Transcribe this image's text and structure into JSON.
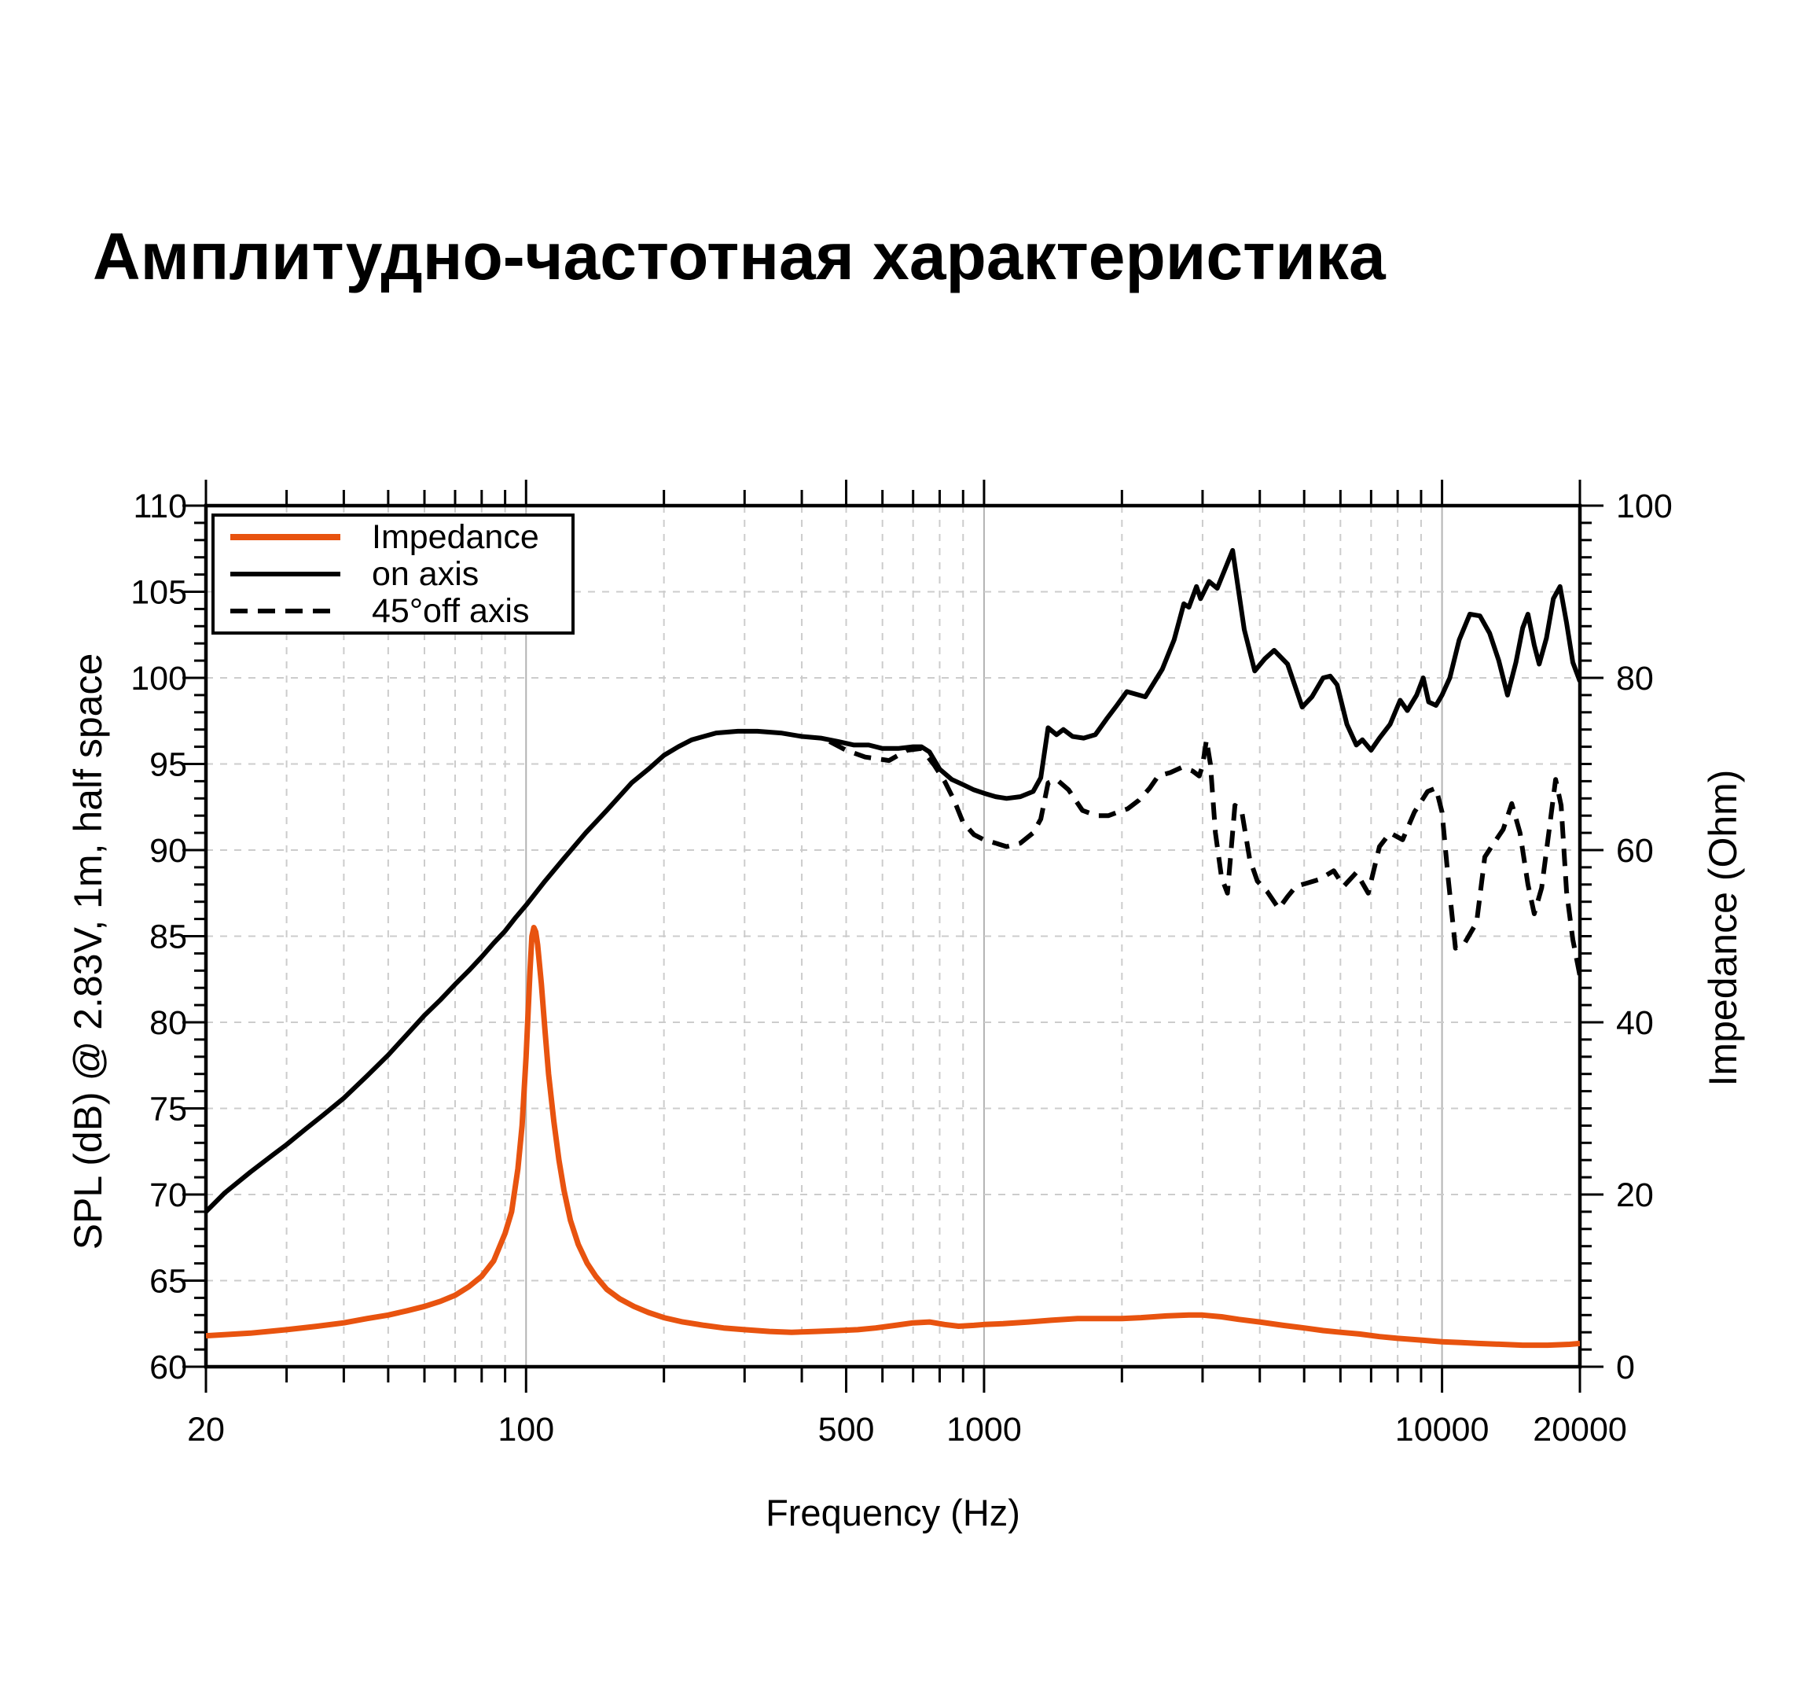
{
  "title": "Амплитудно-частотная характеристика",
  "legend": {
    "items": [
      {
        "label": "Impedance",
        "swatch": "impedance-line"
      },
      {
        "label": "on axis",
        "swatch": "solid-line"
      },
      {
        "label": "45°off axis",
        "swatch": "dashed-line"
      }
    ]
  },
  "colors": {
    "impedance": "#e8530f",
    "spl_curves": "#000000",
    "grid_minor": "#cccccc",
    "grid_decade": "#b3b3b3",
    "axis": "#000000"
  },
  "axes": {
    "x": {
      "label": "Frequency (Hz)",
      "scale": "log",
      "min": 20,
      "max": 20000,
      "tick_labels": [
        "20",
        "100",
        "500",
        "1000",
        "10000",
        "20000"
      ],
      "labeled_ticks": [
        20,
        100,
        500,
        1000,
        10000,
        20000
      ],
      "minor_ticks": [
        30,
        40,
        50,
        60,
        70,
        80,
        90,
        200,
        300,
        400,
        600,
        700,
        800,
        900,
        2000,
        3000,
        4000,
        5000,
        6000,
        7000,
        8000,
        9000
      ],
      "decade_gridlines": [
        100,
        1000,
        10000
      ]
    },
    "y_left": {
      "label": "SPL (dB) @ 2.83V, 1m, half space",
      "min": 60,
      "max": 110,
      "major_step": 5,
      "minor_step": 1,
      "tick_labels": [
        "110",
        "105",
        "100",
        "95",
        "90",
        "85",
        "80",
        "75",
        "70",
        "65",
        "60"
      ]
    },
    "y_right": {
      "label": "Impedance (Ohm)",
      "min": 0,
      "max": 100,
      "major_step": 20,
      "minor_step": 2,
      "tick_labels": [
        "100",
        "80",
        "60",
        "40",
        "20",
        "0"
      ]
    }
  },
  "chart_data": {
    "type": "line",
    "title": "Амплитудно-частотная характеристика",
    "xlabel": "Frequency (Hz)",
    "ylabel_left": "SPL (dB) @ 2.83V, 1m, half space",
    "ylabel_right": "Impedance (Ohm)",
    "x_range": [
      20,
      20000
    ],
    "y_left_range": [
      60,
      110
    ],
    "y_right_range": [
      0,
      100
    ],
    "grid": true,
    "legend_position": "top-left",
    "series": [
      {
        "name": "on axis",
        "axis": "left",
        "style": "solid",
        "color": "#000000",
        "points": [
          [
            20,
            69.0
          ],
          [
            22,
            70.1
          ],
          [
            25,
            71.3
          ],
          [
            28,
            72.3
          ],
          [
            30,
            72.9
          ],
          [
            33,
            73.8
          ],
          [
            36,
            74.6
          ],
          [
            40,
            75.6
          ],
          [
            45,
            76.9
          ],
          [
            50,
            78.1
          ],
          [
            55,
            79.3
          ],
          [
            60,
            80.4
          ],
          [
            65,
            81.3
          ],
          [
            70,
            82.2
          ],
          [
            75,
            83.0
          ],
          [
            80,
            83.8
          ],
          [
            85,
            84.6
          ],
          [
            90,
            85.3
          ],
          [
            95,
            86.1
          ],
          [
            100,
            86.8
          ],
          [
            110,
            88.2
          ],
          [
            120,
            89.4
          ],
          [
            135,
            91.0
          ],
          [
            150,
            92.3
          ],
          [
            170,
            93.9
          ],
          [
            185,
            94.7
          ],
          [
            200,
            95.5
          ],
          [
            215,
            96.0
          ],
          [
            230,
            96.4
          ],
          [
            260,
            96.8
          ],
          [
            290,
            96.9
          ],
          [
            320,
            96.9
          ],
          [
            360,
            96.8
          ],
          [
            400,
            96.6
          ],
          [
            440,
            96.5
          ],
          [
            480,
            96.3
          ],
          [
            520,
            96.1
          ],
          [
            560,
            96.1
          ],
          [
            600,
            95.9
          ],
          [
            650,
            95.9
          ],
          [
            700,
            96.0
          ],
          [
            730,
            96.0
          ],
          [
            760,
            95.7
          ],
          [
            800,
            94.7
          ],
          [
            850,
            94.1
          ],
          [
            900,
            93.8
          ],
          [
            950,
            93.5
          ],
          [
            1000,
            93.3
          ],
          [
            1060,
            93.1
          ],
          [
            1120,
            93.0
          ],
          [
            1200,
            93.1
          ],
          [
            1280,
            93.4
          ],
          [
            1330,
            94.2
          ],
          [
            1380,
            97.1
          ],
          [
            1440,
            96.7
          ],
          [
            1490,
            97.0
          ],
          [
            1560,
            96.6
          ],
          [
            1650,
            96.5
          ],
          [
            1750,
            96.7
          ],
          [
            1850,
            97.6
          ],
          [
            1950,
            98.4
          ],
          [
            2050,
            99.2
          ],
          [
            2250,
            98.9
          ],
          [
            2450,
            100.5
          ],
          [
            2600,
            102.2
          ],
          [
            2730,
            104.3
          ],
          [
            2800,
            104.1
          ],
          [
            2910,
            105.3
          ],
          [
            2970,
            104.6
          ],
          [
            3100,
            105.6
          ],
          [
            3230,
            105.2
          ],
          [
            3490,
            107.4
          ],
          [
            3700,
            102.8
          ],
          [
            3900,
            100.4
          ],
          [
            4100,
            101.1
          ],
          [
            4300,
            101.6
          ],
          [
            4600,
            100.8
          ],
          [
            4950,
            98.3
          ],
          [
            5200,
            98.9
          ],
          [
            5500,
            100.0
          ],
          [
            5700,
            100.1
          ],
          [
            5900,
            99.6
          ],
          [
            6200,
            97.3
          ],
          [
            6500,
            96.1
          ],
          [
            6700,
            96.4
          ],
          [
            7000,
            95.8
          ],
          [
            7300,
            96.5
          ],
          [
            7700,
            97.3
          ],
          [
            8100,
            98.7
          ],
          [
            8400,
            98.1
          ],
          [
            8800,
            99.0
          ],
          [
            9100,
            100.0
          ],
          [
            9350,
            98.6
          ],
          [
            9700,
            98.4
          ],
          [
            10000,
            99.0
          ],
          [
            10400,
            100.0
          ],
          [
            10900,
            102.2
          ],
          [
            11500,
            103.7
          ],
          [
            12100,
            103.6
          ],
          [
            12700,
            102.6
          ],
          [
            13300,
            101.0
          ],
          [
            13900,
            99.0
          ],
          [
            14500,
            100.9
          ],
          [
            15000,
            102.9
          ],
          [
            15400,
            103.7
          ],
          [
            15900,
            101.9
          ],
          [
            16300,
            100.8
          ],
          [
            16900,
            102.3
          ],
          [
            17500,
            104.6
          ],
          [
            18100,
            105.3
          ],
          [
            18700,
            103.2
          ],
          [
            19300,
            100.9
          ],
          [
            20000,
            99.8
          ]
        ]
      },
      {
        "name": "45°off axis",
        "axis": "left",
        "style": "dashed",
        "color": "#000000",
        "points": [
          [
            460,
            96.3
          ],
          [
            500,
            95.8
          ],
          [
            550,
            95.4
          ],
          [
            620,
            95.2
          ],
          [
            680,
            95.8
          ],
          [
            730,
            95.9
          ],
          [
            780,
            94.9
          ],
          [
            820,
            94.0
          ],
          [
            860,
            92.9
          ],
          [
            900,
            91.6
          ],
          [
            950,
            90.9
          ],
          [
            1000,
            90.6
          ],
          [
            1060,
            90.4
          ],
          [
            1120,
            90.2
          ],
          [
            1200,
            90.4
          ],
          [
            1280,
            91.0
          ],
          [
            1330,
            91.8
          ],
          [
            1380,
            93.9
          ],
          [
            1440,
            94.1
          ],
          [
            1530,
            93.5
          ],
          [
            1640,
            92.3
          ],
          [
            1760,
            92.0
          ],
          [
            1870,
            92.0
          ],
          [
            1960,
            92.2
          ],
          [
            2060,
            92.4
          ],
          [
            2180,
            92.9
          ],
          [
            2300,
            93.6
          ],
          [
            2400,
            94.3
          ],
          [
            2550,
            94.5
          ],
          [
            2700,
            94.8
          ],
          [
            2850,
            94.6
          ],
          [
            2950,
            94.3
          ],
          [
            3000,
            94.9
          ],
          [
            3060,
            96.4
          ],
          [
            3120,
            95.0
          ],
          [
            3200,
            91.0
          ],
          [
            3300,
            88.4
          ],
          [
            3400,
            87.5
          ],
          [
            3530,
            92.6
          ],
          [
            3650,
            92.3
          ],
          [
            3800,
            89.5
          ],
          [
            3950,
            88.2
          ],
          [
            4150,
            87.6
          ],
          [
            4400,
            86.6
          ],
          [
            4600,
            87.3
          ],
          [
            4800,
            87.9
          ],
          [
            5100,
            88.1
          ],
          [
            5400,
            88.3
          ],
          [
            5800,
            88.8
          ],
          [
            6100,
            87.9
          ],
          [
            6500,
            88.7
          ],
          [
            6900,
            87.5
          ],
          [
            7300,
            90.2
          ],
          [
            7700,
            91.0
          ],
          [
            8200,
            90.6
          ],
          [
            8700,
            92.2
          ],
          [
            9300,
            93.4
          ],
          [
            9700,
            93.6
          ],
          [
            10000,
            92.2
          ],
          [
            10300,
            88.5
          ],
          [
            10700,
            84.3
          ],
          [
            11200,
            84.6
          ],
          [
            11900,
            85.8
          ],
          [
            12400,
            89.6
          ],
          [
            12900,
            90.3
          ],
          [
            13600,
            91.2
          ],
          [
            14200,
            92.7
          ],
          [
            14800,
            91.0
          ],
          [
            15400,
            88.0
          ],
          [
            15900,
            86.3
          ],
          [
            16500,
            87.8
          ],
          [
            17100,
            91.0
          ],
          [
            17700,
            94.1
          ],
          [
            18200,
            92.6
          ],
          [
            18700,
            87.6
          ],
          [
            19300,
            84.8
          ],
          [
            20000,
            82.7
          ]
        ]
      },
      {
        "name": "Impedance",
        "axis": "right",
        "style": "solid",
        "color": "#e8530f",
        "points": [
          [
            20,
            3.6
          ],
          [
            25,
            3.9
          ],
          [
            30,
            4.3
          ],
          [
            35,
            4.7
          ],
          [
            40,
            5.1
          ],
          [
            45,
            5.6
          ],
          [
            50,
            6.0
          ],
          [
            55,
            6.5
          ],
          [
            60,
            7.0
          ],
          [
            65,
            7.6
          ],
          [
            70,
            8.3
          ],
          [
            75,
            9.3
          ],
          [
            80,
            10.5
          ],
          [
            85,
            12.3
          ],
          [
            90,
            15.5
          ],
          [
            93,
            18.0
          ],
          [
            96,
            23.0
          ],
          [
            98,
            28.0
          ],
          [
            100,
            36.0
          ],
          [
            101,
            41.0
          ],
          [
            102,
            46.0
          ],
          [
            103,
            50.0
          ],
          [
            104,
            51.0
          ],
          [
            105,
            50.5
          ],
          [
            106,
            49.0
          ],
          [
            108,
            44.5
          ],
          [
            110,
            39.0
          ],
          [
            112,
            34.0
          ],
          [
            115,
            28.5
          ],
          [
            118,
            24.0
          ],
          [
            121,
            20.5
          ],
          [
            125,
            17.0
          ],
          [
            130,
            14.2
          ],
          [
            136,
            12.0
          ],
          [
            142,
            10.5
          ],
          [
            150,
            9.0
          ],
          [
            160,
            7.9
          ],
          [
            172,
            7.0
          ],
          [
            185,
            6.3
          ],
          [
            200,
            5.7
          ],
          [
            220,
            5.2
          ],
          [
            245,
            4.8
          ],
          [
            270,
            4.5
          ],
          [
            300,
            4.3
          ],
          [
            340,
            4.1
          ],
          [
            380,
            4.0
          ],
          [
            430,
            4.1
          ],
          [
            480,
            4.2
          ],
          [
            530,
            4.3
          ],
          [
            580,
            4.5
          ],
          [
            640,
            4.8
          ],
          [
            700,
            5.1
          ],
          [
            760,
            5.2
          ],
          [
            820,
            4.9
          ],
          [
            880,
            4.7
          ],
          [
            950,
            4.8
          ],
          [
            1000,
            4.9
          ],
          [
            1100,
            5.0
          ],
          [
            1250,
            5.2
          ],
          [
            1400,
            5.4
          ],
          [
            1600,
            5.6
          ],
          [
            1800,
            5.6
          ],
          [
            2000,
            5.6
          ],
          [
            2200,
            5.7
          ],
          [
            2500,
            5.9
          ],
          [
            2800,
            6.0
          ],
          [
            3000,
            6.0
          ],
          [
            3300,
            5.8
          ],
          [
            3600,
            5.5
          ],
          [
            4000,
            5.2
          ],
          [
            4500,
            4.8
          ],
          [
            5000,
            4.5
          ],
          [
            5500,
            4.2
          ],
          [
            6000,
            4.0
          ],
          [
            6600,
            3.8
          ],
          [
            7300,
            3.5
          ],
          [
            8000,
            3.3
          ],
          [
            9000,
            3.1
          ],
          [
            10000,
            2.9
          ],
          [
            11000,
            2.8
          ],
          [
            12000,
            2.7
          ],
          [
            13500,
            2.6
          ],
          [
            15000,
            2.5
          ],
          [
            17000,
            2.5
          ],
          [
            19000,
            2.6
          ],
          [
            20000,
            2.7
          ]
        ]
      }
    ]
  }
}
